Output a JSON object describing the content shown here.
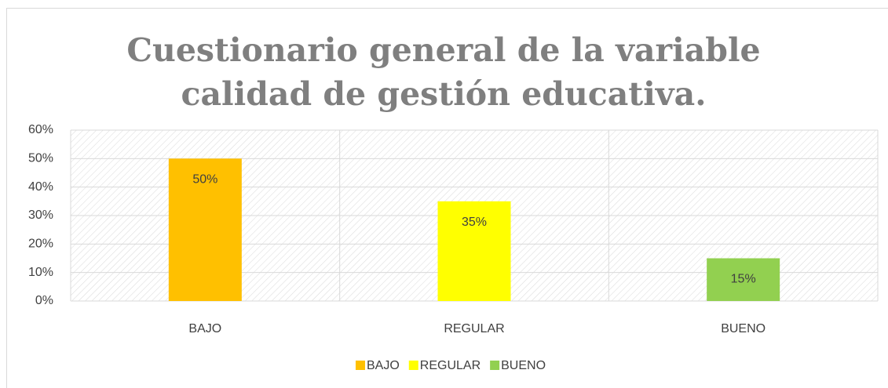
{
  "chart_data": {
    "type": "bar",
    "title": "Cuestionario general de la variable calidad de gestión educativa.",
    "categories": [
      "BAJO",
      "REGULAR",
      "BUENO"
    ],
    "values": [
      50,
      35,
      15
    ],
    "value_labels": [
      "50%",
      "35%",
      "15%"
    ],
    "colors": [
      "#ffc000",
      "#ffff00",
      "#92d050"
    ],
    "ylim": [
      0,
      60
    ],
    "yticks": [
      {
        "value": 0,
        "label": "0%"
      },
      {
        "value": 10,
        "label": "10%"
      },
      {
        "value": 20,
        "label": "20%"
      },
      {
        "value": 30,
        "label": "30%"
      },
      {
        "value": 40,
        "label": "40%"
      },
      {
        "value": 50,
        "label": "50%"
      },
      {
        "value": 60,
        "label": "60%"
      }
    ],
    "grid": true,
    "legend": "bottom"
  }
}
